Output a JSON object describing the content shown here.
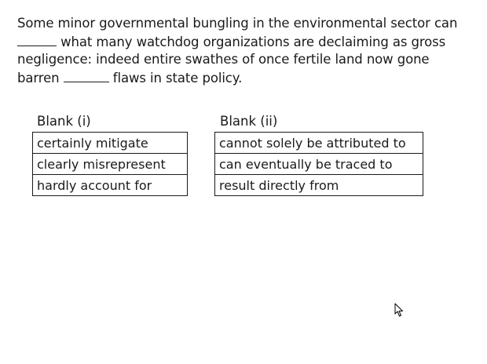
{
  "question": {
    "line1": "Some minor governmental bungling in the environmental sector can",
    "line2_after_blank": " what many watchdog organizations are declaiming as gross",
    "line3": "negligence: indeed entire swathes of once fertile land now gone",
    "line4_before_blank": "barren ",
    "line4_after_blank": " flaws in state policy."
  },
  "blank_i": {
    "title": "Blank (i)",
    "options": [
      "certainly mitigate",
      "clearly misrepresent",
      "hardly account for"
    ]
  },
  "blank_ii": {
    "title": "Blank (ii)",
    "options": [
      "cannot solely be attributed to",
      "can eventually be traced to",
      "result directly from"
    ]
  },
  "icons": {
    "cursor": "mouse-pointer-icon"
  }
}
